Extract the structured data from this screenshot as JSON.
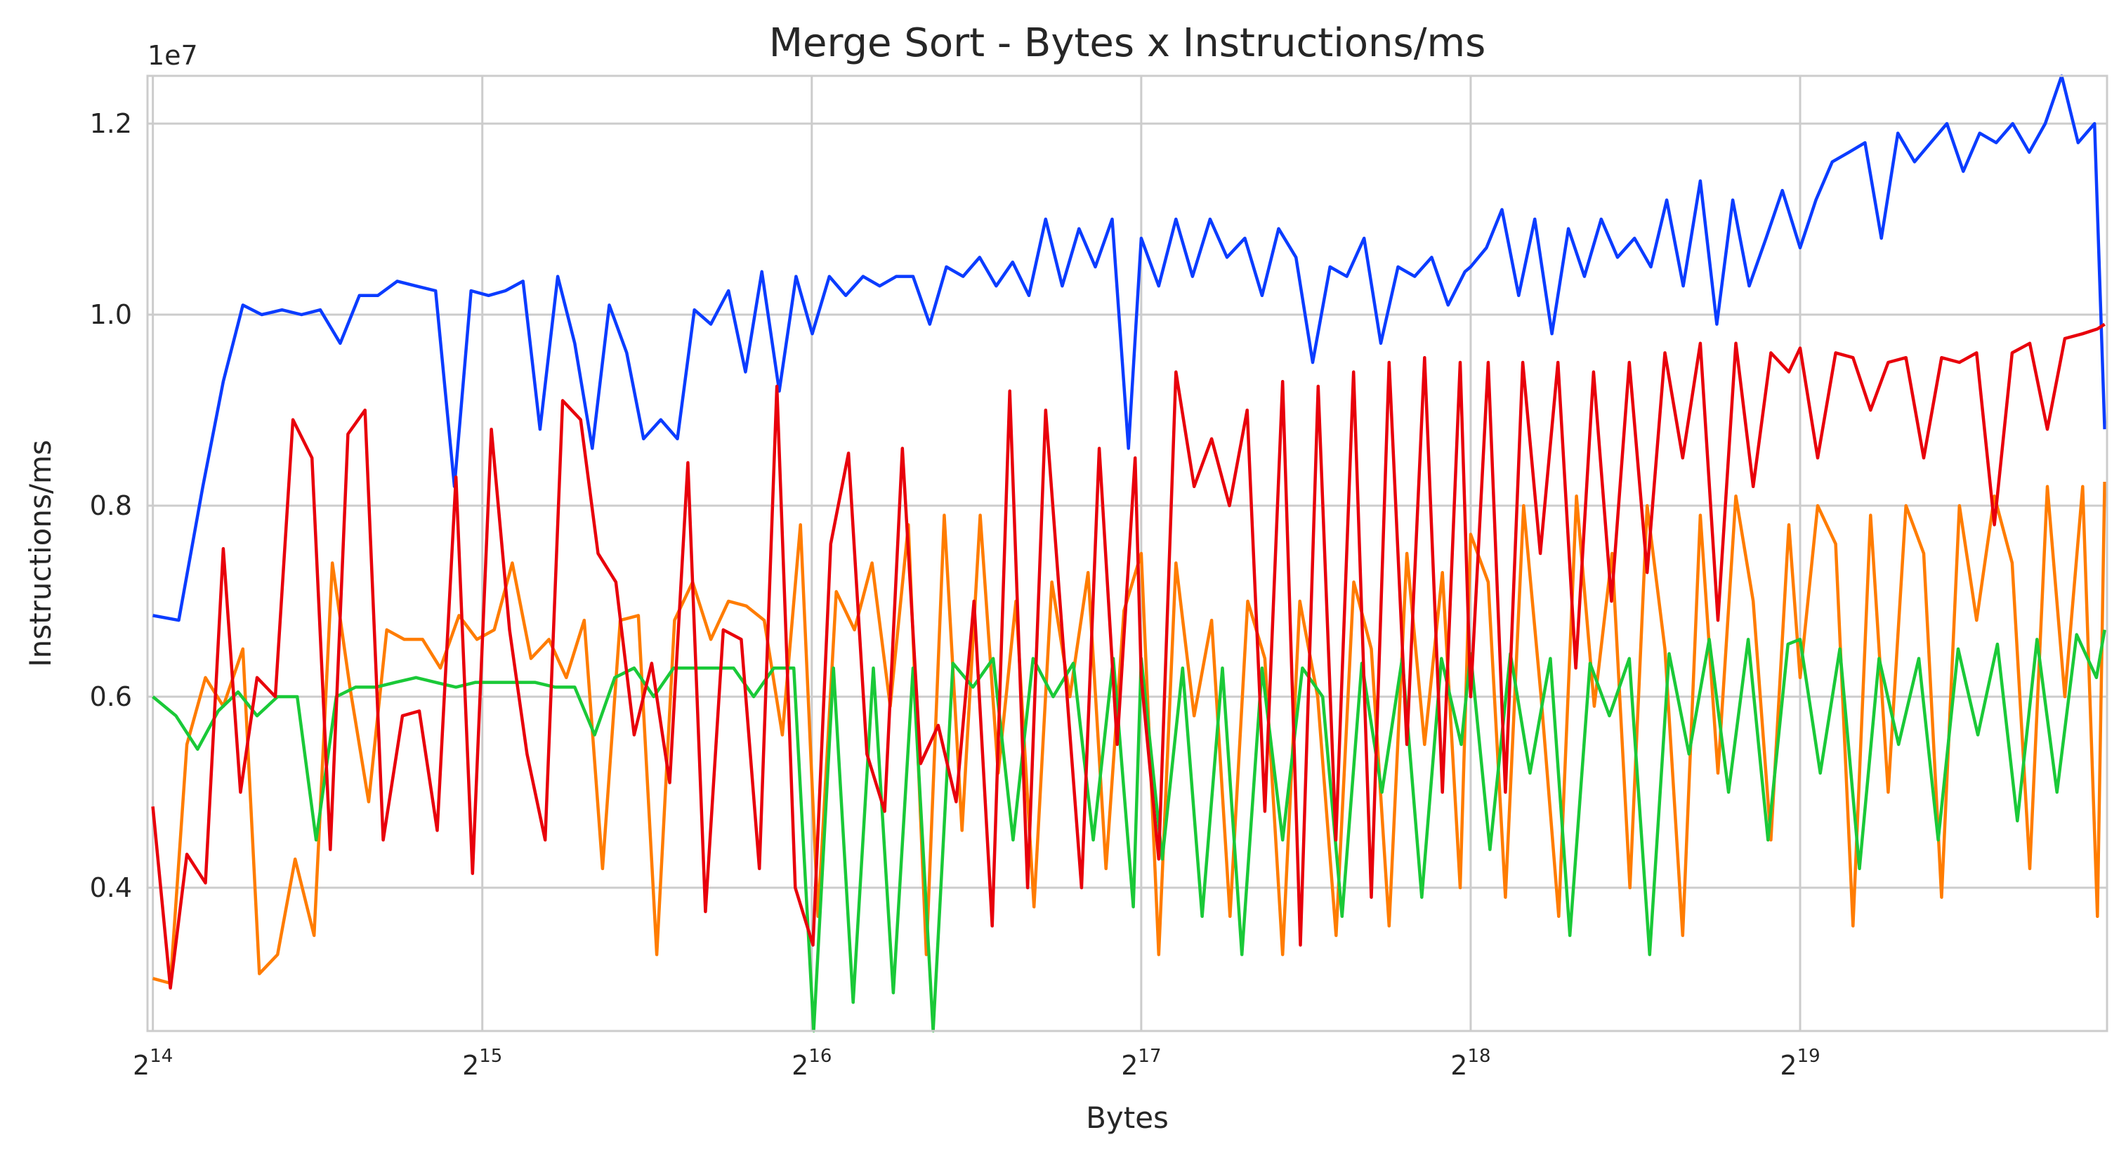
{
  "chart_data": {
    "type": "line",
    "title": "Merge Sort - Bytes x Instructions/ms",
    "xlabel": "Bytes",
    "ylabel": "Instructions/ms",
    "x_scale": "log2",
    "xlim": [
      16200,
      1000000
    ],
    "ylim": [
      2.5,
      12.5
    ],
    "y_offset_label": "1e7",
    "y_unit_multiplier": 10000000,
    "grid": true,
    "legend": "none",
    "x_ticks": [
      {
        "value": 16384,
        "base": "2",
        "exp": "14"
      },
      {
        "value": 32768,
        "base": "2",
        "exp": "15"
      },
      {
        "value": 65536,
        "base": "2",
        "exp": "16"
      },
      {
        "value": 131072,
        "base": "2",
        "exp": "17"
      },
      {
        "value": 262144,
        "base": "2",
        "exp": "18"
      },
      {
        "value": 524288,
        "base": "2",
        "exp": "19"
      }
    ],
    "y_ticks": [
      {
        "value": 4.0,
        "label": "0.4"
      },
      {
        "value": 6.0,
        "label": "0.6"
      },
      {
        "value": 8.0,
        "label": "0.8"
      },
      {
        "value": 10.0,
        "label": "1.0"
      },
      {
        "value": 12.0,
        "label": "1.2"
      }
    ],
    "series": [
      {
        "color": "#0b3cff",
        "x": [
          16384,
          17300,
          18200,
          19000,
          19800,
          20600,
          21500,
          22400,
          23300,
          24300,
          25300,
          26300,
          27400,
          28500,
          29700,
          30900,
          32000,
          33200,
          34400,
          35700,
          37000,
          38400,
          39800,
          41300,
          42800,
          44400,
          46000,
          47700,
          49400,
          51200,
          53000,
          55000,
          57000,
          59000,
          61200,
          63400,
          65600,
          68000,
          70400,
          73000,
          75600,
          78300,
          81100,
          84000,
          87000,
          90100,
          93300,
          96600,
          100000,
          103500,
          107200,
          111000,
          115000,
          119000,
          123300,
          127600,
          131072,
          136000,
          141000,
          146000,
          151500,
          157000,
          163000,
          169000,
          175000,
          181500,
          188000,
          195000,
          202000,
          209500,
          217000,
          225000,
          233000,
          241500,
          250000,
          259000,
          262144,
          271000,
          280000,
          290000,
          300000,
          311000,
          322000,
          333000,
          345000,
          357000,
          370000,
          383000,
          396000,
          410000,
          425000,
          440000,
          455000,
          471000,
          488000,
          505000,
          524288,
          542000,
          561000,
          581000,
          601000,
          622000,
          644000,
          667000,
          690000,
          714000,
          739000,
          765000,
          792000,
          820000,
          849000,
          878000,
          909000,
          941000,
          974000,
          995000
        ],
        "y": [
          6.85,
          6.8,
          8.2,
          9.3,
          10.1,
          10.0,
          10.05,
          10.0,
          10.05,
          9.7,
          10.2,
          10.2,
          10.35,
          10.3,
          10.25,
          8.2,
          10.25,
          10.2,
          10.25,
          10.35,
          8.8,
          10.4,
          9.7,
          8.6,
          10.1,
          9.6,
          8.7,
          8.9,
          8.7,
          10.05,
          9.9,
          10.25,
          9.4,
          10.45,
          9.2,
          10.4,
          9.8,
          10.4,
          10.2,
          10.4,
          10.3,
          10.4,
          10.4,
          9.9,
          10.5,
          10.4,
          10.6,
          10.3,
          10.55,
          10.2,
          11.0,
          10.3,
          10.9,
          10.5,
          11.0,
          8.6,
          10.8,
          10.3,
          11.0,
          10.4,
          11.0,
          10.6,
          10.8,
          10.2,
          10.9,
          10.6,
          9.5,
          10.5,
          10.4,
          10.8,
          9.7,
          10.5,
          10.4,
          10.6,
          10.1,
          10.45,
          10.5,
          10.7,
          11.1,
          10.2,
          11.0,
          9.8,
          10.9,
          10.4,
          11.0,
          10.6,
          10.8,
          10.5,
          11.2,
          10.3,
          11.4,
          9.9,
          11.2,
          10.3,
          10.8,
          11.3,
          10.7,
          11.2,
          11.6,
          11.7,
          11.8,
          10.8,
          11.9,
          11.6,
          11.8,
          12.0,
          11.5,
          11.9,
          11.8,
          12.0,
          11.7,
          12.0,
          12.5,
          11.8,
          12.0,
          8.8
        ]
      },
      {
        "color": "#ff7c00",
        "x": [
          16384,
          17000,
          17600,
          18300,
          19000,
          19800,
          20500,
          21300,
          22100,
          23000,
          23900,
          24800,
          25800,
          26800,
          27800,
          28900,
          30000,
          31200,
          32400,
          33600,
          34900,
          36300,
          37700,
          39100,
          40600,
          42200,
          43800,
          45500,
          47300,
          49100,
          51000,
          53000,
          55000,
          57100,
          59300,
          61600,
          64000,
          66400,
          69000,
          71700,
          74400,
          77300,
          80300,
          83400,
          86600,
          89900,
          93400,
          97000,
          100700,
          104600,
          108600,
          112800,
          117200,
          121700,
          126400,
          131072,
          136000,
          141000,
          146500,
          152000,
          158000,
          164000,
          170000,
          176500,
          183000,
          190000,
          197500,
          205000,
          212700,
          220800,
          229200,
          237900,
          247000,
          256400,
          262144,
          272000,
          282000,
          293000,
          304000,
          315500,
          327500,
          340000,
          353000,
          366500,
          380000,
          394500,
          409500,
          425000,
          441000,
          458000,
          475000,
          493000,
          512000,
          524288,
          544000,
          565000,
          586000,
          608000,
          631000,
          655000,
          680000,
          706000,
          733000,
          760000,
          789000,
          819000,
          850000,
          882000,
          915000,
          950000,
          980000,
          995000
        ],
        "y": [
          3.05,
          3.0,
          5.5,
          6.2,
          5.9,
          6.5,
          3.1,
          3.3,
          4.3,
          3.5,
          7.4,
          6.1,
          4.9,
          6.7,
          6.6,
          6.6,
          6.3,
          6.85,
          6.6,
          6.7,
          7.4,
          6.4,
          6.6,
          6.2,
          6.8,
          4.2,
          6.8,
          6.85,
          3.3,
          6.8,
          7.2,
          6.6,
          7.0,
          6.95,
          6.8,
          5.6,
          7.8,
          3.7,
          7.1,
          6.7,
          7.4,
          5.9,
          7.8,
          3.3,
          7.9,
          4.6,
          7.9,
          5.2,
          7.0,
          3.8,
          7.2,
          6.0,
          7.3,
          4.2,
          6.9,
          7.5,
          3.3,
          7.4,
          5.8,
          6.8,
          3.7,
          7.0,
          6.4,
          3.3,
          7.0,
          6.0,
          3.5,
          7.2,
          6.5,
          3.6,
          7.5,
          5.5,
          7.3,
          4.0,
          7.7,
          7.2,
          3.9,
          8.0,
          6.0,
          3.7,
          8.1,
          5.9,
          7.5,
          4.0,
          8.0,
          6.5,
          3.5,
          7.9,
          5.2,
          8.1,
          7.0,
          4.5,
          7.8,
          6.2,
          8.0,
          7.6,
          3.6,
          7.9,
          5.0,
          8.0,
          7.5,
          3.9,
          8.0,
          6.8,
          8.1,
          7.4,
          4.2,
          8.2,
          6.0,
          8.2,
          3.7,
          8.25
        ]
      },
      {
        "color": "#1ac938",
        "x": [
          16384,
          17200,
          18000,
          18800,
          19600,
          20400,
          21300,
          22200,
          23100,
          24100,
          25100,
          26200,
          27300,
          28500,
          29700,
          31000,
          32300,
          33700,
          35100,
          36600,
          38200,
          39800,
          41500,
          43300,
          45100,
          47000,
          49000,
          51100,
          53300,
          55600,
          58000,
          60500,
          63100,
          65800,
          68600,
          71500,
          74600,
          77800,
          81100,
          84600,
          88200,
          92000,
          96000,
          100100,
          104400,
          108900,
          113600,
          118500,
          123600,
          128900,
          131072,
          137000,
          143000,
          149000,
          155500,
          162000,
          169000,
          176500,
          184000,
          192000,
          200000,
          208500,
          217500,
          227000,
          236500,
          246500,
          257000,
          262144,
          273000,
          285000,
          297000,
          310000,
          323000,
          337000,
          351000,
          366000,
          382000,
          398000,
          415000,
          433000,
          451000,
          470000,
          490000,
          511000,
          524288,
          547000,
          570000,
          594000,
          619000,
          645000,
          673000,
          701000,
          731000,
          762000,
          794000,
          828000,
          863000,
          900000,
          938000,
          978000,
          995000
        ],
        "y": [
          6.0,
          5.8,
          5.45,
          5.85,
          6.05,
          5.8,
          6.0,
          6.0,
          4.5,
          6.0,
          6.1,
          6.1,
          6.15,
          6.2,
          6.15,
          6.1,
          6.15,
          6.15,
          6.15,
          6.15,
          6.1,
          6.1,
          5.6,
          6.2,
          6.3,
          6.0,
          6.3,
          6.3,
          6.3,
          6.3,
          6.0,
          6.3,
          6.3,
          2.5,
          6.3,
          2.8,
          6.3,
          2.9,
          6.3,
          2.5,
          6.35,
          6.1,
          6.4,
          4.5,
          6.4,
          6.0,
          6.35,
          4.5,
          6.4,
          3.8,
          6.4,
          4.3,
          6.3,
          3.7,
          6.3,
          3.3,
          6.3,
          4.5,
          6.3,
          6.0,
          3.7,
          6.35,
          5.0,
          6.4,
          3.9,
          6.4,
          5.5,
          6.45,
          4.4,
          6.45,
          5.2,
          6.4,
          3.5,
          6.35,
          5.8,
          6.4,
          3.3,
          6.45,
          5.4,
          6.6,
          5.0,
          6.6,
          4.5,
          6.55,
          6.6,
          5.2,
          6.5,
          4.2,
          6.4,
          5.5,
          6.4,
          4.5,
          6.5,
          5.6,
          6.55,
          4.7,
          6.6,
          5.0,
          6.65,
          6.2,
          6.7
        ]
      },
      {
        "color": "#e8000b",
        "x": [
          16384,
          17000,
          17600,
          18300,
          19000,
          19700,
          20400,
          21200,
          22000,
          22900,
          23800,
          24700,
          25600,
          26600,
          27700,
          28700,
          29800,
          31000,
          32100,
          33400,
          34700,
          36000,
          37400,
          38800,
          40300,
          41800,
          43400,
          45100,
          46800,
          48600,
          50500,
          52400,
          54400,
          56500,
          58700,
          60900,
          63300,
          65700,
          68200,
          70800,
          73600,
          76400,
          79300,
          82400,
          85500,
          88800,
          92200,
          95800,
          99400,
          103200,
          107200,
          111300,
          115600,
          120000,
          124600,
          129400,
          131072,
          136000,
          141000,
          146500,
          152000,
          157800,
          163800,
          170000,
          176500,
          183200,
          190200,
          197400,
          204900,
          212700,
          220800,
          229200,
          237900,
          247000,
          256400,
          262144,
          272000,
          282000,
          292500,
          303500,
          315000,
          327000,
          339500,
          352500,
          366000,
          380000,
          394500,
          409500,
          425000,
          441000,
          458000,
          475000,
          493000,
          512000,
          524288,
          544000,
          565000,
          586000,
          608000,
          631000,
          655000,
          680000,
          706000,
          733000,
          760000,
          789000,
          819000,
          850000,
          882000,
          915000,
          950000,
          980000,
          995000
        ],
        "y": [
          4.85,
          2.95,
          4.35,
          4.05,
          7.55,
          5.0,
          6.2,
          6.0,
          8.9,
          8.5,
          4.4,
          8.75,
          9.0,
          4.5,
          5.8,
          5.85,
          4.6,
          8.3,
          4.15,
          8.8,
          6.7,
          5.4,
          4.5,
          9.1,
          8.9,
          7.5,
          7.2,
          5.6,
          6.35,
          5.1,
          8.45,
          3.75,
          6.7,
          6.6,
          4.2,
          9.25,
          4.0,
          3.4,
          7.6,
          8.55,
          5.4,
          4.8,
          8.6,
          5.3,
          5.7,
          4.9,
          7.0,
          3.6,
          9.2,
          4.0,
          9.0,
          6.5,
          4.0,
          8.6,
          5.5,
          8.5,
          6.2,
          4.3,
          9.4,
          8.2,
          8.7,
          8.0,
          9.0,
          4.8,
          9.3,
          3.4,
          9.25,
          4.5,
          9.4,
          3.9,
          9.5,
          5.5,
          9.55,
          5.0,
          9.5,
          6.0,
          9.5,
          5.0,
          9.5,
          7.5,
          9.5,
          6.3,
          9.4,
          7.0,
          9.5,
          7.3,
          9.6,
          8.5,
          9.7,
          6.8,
          9.7,
          8.2,
          9.6,
          9.4,
          9.65,
          8.5,
          9.6,
          9.55,
          9.0,
          9.5,
          9.55,
          8.5,
          9.55,
          9.5,
          9.6,
          7.8,
          9.6,
          9.7,
          8.8,
          9.75,
          9.8,
          9.85,
          9.9
        ]
      }
    ]
  }
}
